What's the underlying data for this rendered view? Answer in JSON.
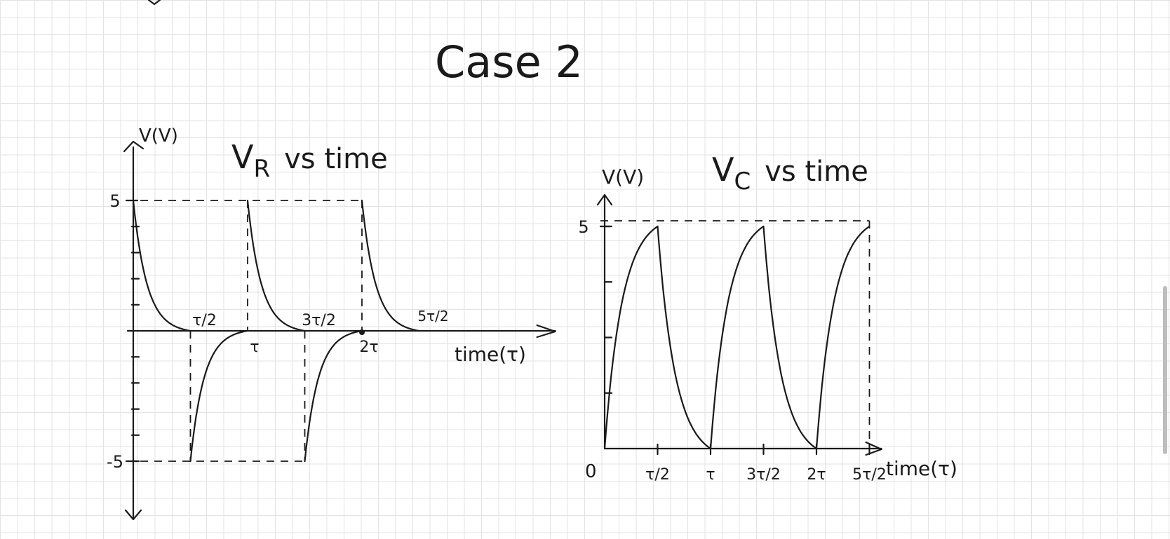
{
  "page": {
    "title": "Case 2"
  },
  "chart_data": [
    {
      "type": "line",
      "title": "V_R vs time",
      "title_main": "V",
      "title_sub": "R",
      "title_rest": "vs time",
      "ylabel": "V(V)",
      "xlabel": "time(τ)",
      "xlim": [
        0,
        3.2
      ],
      "ylim": [
        -5,
        5
      ],
      "yticks": [
        {
          "value": 5,
          "label": "5"
        },
        {
          "value": -5,
          "label": "-5"
        }
      ],
      "xticks": [
        {
          "value": 0.5,
          "label": "τ/2",
          "position": "above"
        },
        {
          "value": 1,
          "label": "τ",
          "position": "below"
        },
        {
          "value": 1.5,
          "label": "3τ/2",
          "position": "above"
        },
        {
          "value": 2,
          "label": "2τ",
          "position": "below"
        },
        {
          "value": 2.5,
          "label": "5τ/2",
          "position": "above-fraction"
        }
      ],
      "series": [
        {
          "segments": [
            {
              "kind": "decay",
              "x_start": 0,
              "x_end": 0.5,
              "y_start": 5,
              "y_end": 0
            },
            {
              "kind": "rise_neg",
              "x_start": 0.5,
              "x_end": 1,
              "y_start": -5,
              "y_end": 0
            },
            {
              "kind": "decay",
              "x_start": 1,
              "x_end": 1.5,
              "y_start": 5,
              "y_end": 0
            },
            {
              "kind": "rise_neg",
              "x_start": 1.5,
              "x_end": 2,
              "y_start": -5,
              "y_end": 0
            },
            {
              "kind": "decay",
              "x_start": 2,
              "x_end": 2.5,
              "y_start": 5,
              "y_end": 0
            }
          ]
        }
      ],
      "dashed_guides": {
        "horizontal": [
          5,
          -5
        ],
        "vertical": [
          0.5,
          1,
          1.5,
          2
        ]
      }
    },
    {
      "type": "line",
      "title": "V_C vs time",
      "title_main": "V",
      "title_sub": "C",
      "title_rest": "vs time",
      "ylabel": "V(V)",
      "xlabel": "time(τ)",
      "origin_label": "0",
      "xlim": [
        0,
        2.6
      ],
      "ylim": [
        0,
        5.6
      ],
      "yticks": [
        {
          "value": 5,
          "label": "5"
        }
      ],
      "xticks": [
        {
          "value": 0.5,
          "label": "τ/2"
        },
        {
          "value": 1,
          "label": "τ"
        },
        {
          "value": 1.5,
          "label": "3τ/2"
        },
        {
          "value": 2,
          "label": "2τ"
        },
        {
          "value": 2.5,
          "label": "5τ/2"
        }
      ],
      "series": [
        {
          "segments": [
            {
              "kind": "charge",
              "x_start": 0,
              "x_end": 0.5,
              "y_start": 0,
              "y_end": 5
            },
            {
              "kind": "discharge",
              "x_start": 0.5,
              "x_end": 1,
              "y_start": 5,
              "y_end": 0
            },
            {
              "kind": "charge",
              "x_start": 1,
              "x_end": 1.5,
              "y_start": 0,
              "y_end": 5
            },
            {
              "kind": "discharge",
              "x_start": 1.5,
              "x_end": 2,
              "y_start": 5,
              "y_end": 0
            },
            {
              "kind": "charge",
              "x_start": 2,
              "x_end": 2.5,
              "y_start": 0,
              "y_end": 5
            }
          ]
        }
      ],
      "dashed_guides": {
        "horizontal": [
          5
        ],
        "vertical": [
          2.5
        ]
      }
    }
  ]
}
